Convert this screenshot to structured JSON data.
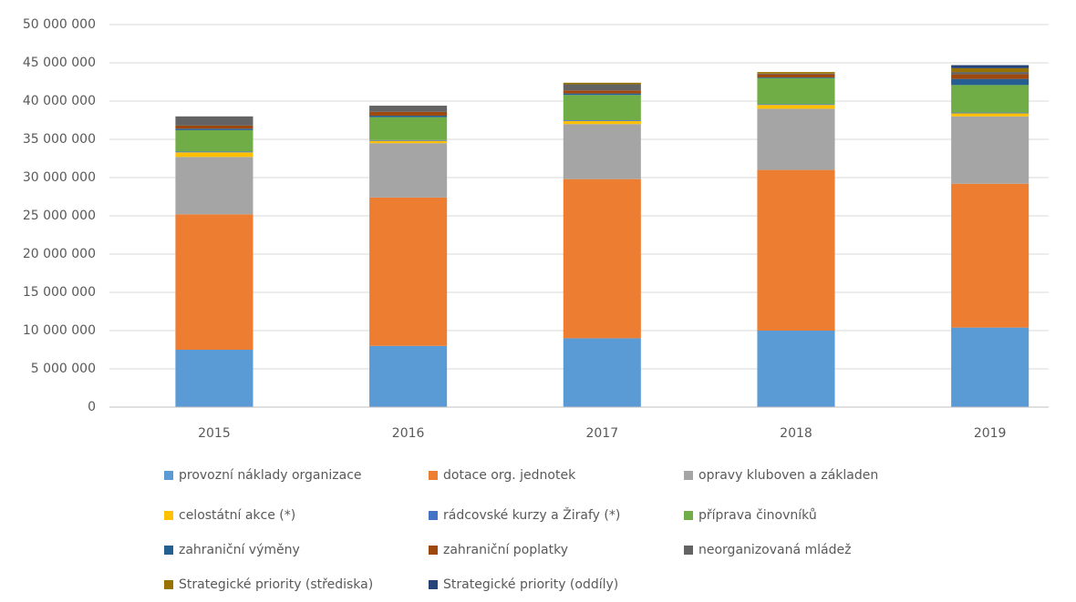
{
  "chart_data": {
    "type": "stacked_bar",
    "categories": [
      "2015",
      "2016",
      "2017",
      "2018",
      "2019"
    ],
    "series": [
      {
        "name": "provozní náklady organizace",
        "color": "#5b9bd5",
        "values": [
          7500000,
          8000000,
          9000000,
          10000000,
          10400000
        ]
      },
      {
        "name": "dotace org. jednotek",
        "color": "#ed7d31",
        "values": [
          17700000,
          19400000,
          20800000,
          21000000,
          18800000
        ]
      },
      {
        "name": "opravy kluboven a základen",
        "color": "#a5a5a5",
        "values": [
          7500000,
          7100000,
          7200000,
          8000000,
          8800000
        ]
      },
      {
        "name": "celostátní akce (*)",
        "color": "#ffc000",
        "values": [
          600000,
          300000,
          400000,
          500000,
          400000
        ]
      },
      {
        "name": "rádcovské kurzy a Žirafy (*)",
        "color": "#4472c4",
        "values": [
          100000,
          100000,
          100000,
          100000,
          100000
        ]
      },
      {
        "name": "příprava činovníků",
        "color": "#70ad47",
        "values": [
          2800000,
          3000000,
          3300000,
          3400000,
          3600000
        ]
      },
      {
        "name": "zahraniční výměny",
        "color": "#255e91",
        "values": [
          200000,
          200000,
          200000,
          100000,
          800000
        ]
      },
      {
        "name": "zahraniční poplatky",
        "color": "#9e480e",
        "values": [
          400000,
          500000,
          400000,
          400000,
          600000
        ]
      },
      {
        "name": "neorganizovaná mládež",
        "color": "#636363",
        "values": [
          1200000,
          800000,
          800000,
          100000,
          300000
        ]
      },
      {
        "name": "Strategické priority (střediska)",
        "color": "#997300",
        "values": [
          0,
          0,
          200000,
          200000,
          500000
        ]
      },
      {
        "name": "Strategické priority (oddíly)",
        "color": "#264478",
        "values": [
          0,
          0,
          0,
          0,
          400000
        ]
      }
    ],
    "ylim": [
      0,
      50000000
    ],
    "yticks": [
      0,
      {
        "value": 5000000,
        "label": "5 000 000"
      },
      {
        "value": 10000000,
        "label": "10 000 000"
      },
      {
        "value": 15000000,
        "label": "15 000 000"
      },
      {
        "value": 20000000,
        "label": "20 000 000"
      },
      {
        "value": 25000000,
        "label": "25 000 000"
      },
      {
        "value": 30000000,
        "label": "30 000 000"
      },
      {
        "value": 35000000,
        "label": "35 000 000"
      },
      {
        "value": 40000000,
        "label": "40 000 000"
      },
      {
        "value": 45000000,
        "label": "45 000 000"
      },
      {
        "value": 50000000,
        "label": "50 000 000"
      }
    ],
    "grid": true
  }
}
